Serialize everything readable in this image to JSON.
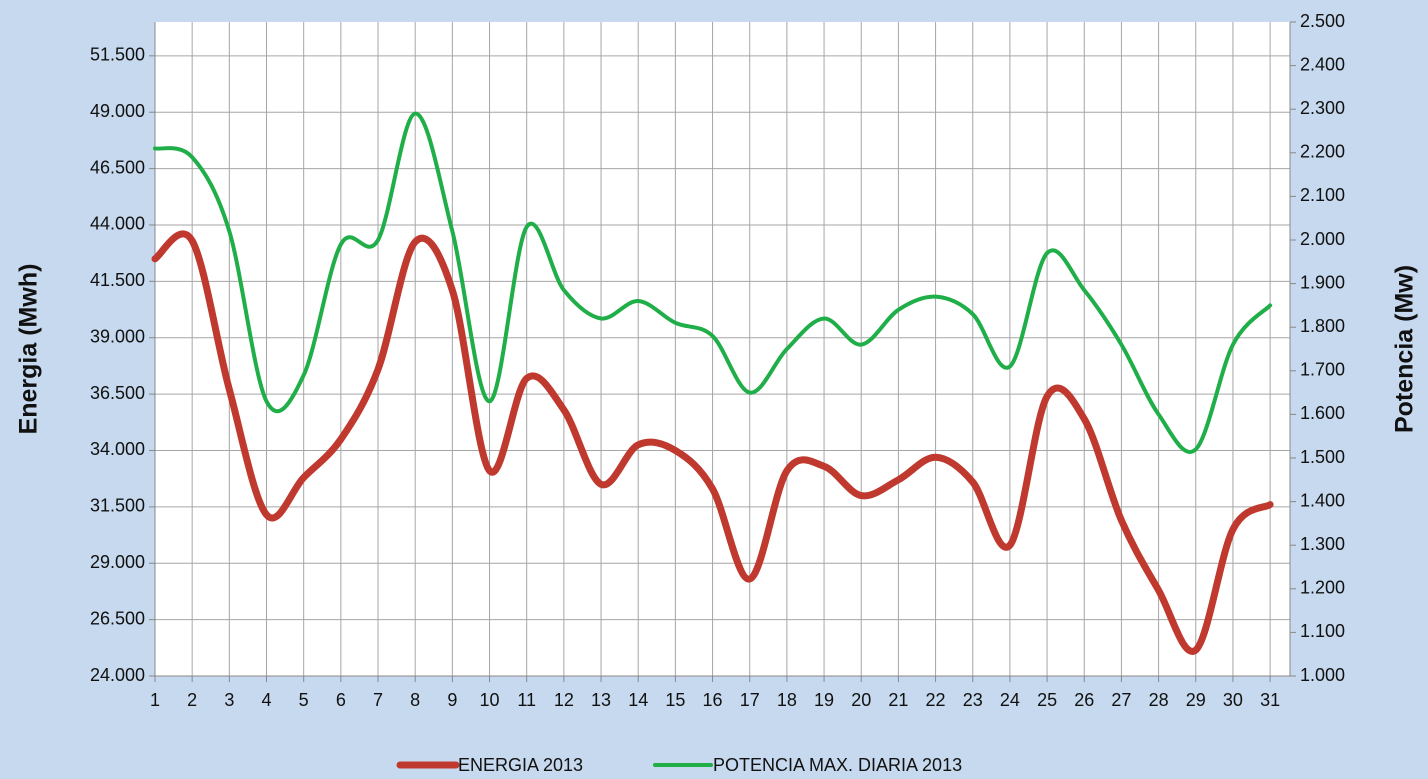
{
  "chart_data": {
    "type": "line",
    "y_label": "Energia (Mwh)",
    "y2_label": "Potencia (Mw)",
    "categories": [
      "1",
      "2",
      "3",
      "4",
      "5",
      "6",
      "7",
      "8",
      "9",
      "10",
      "11",
      "12",
      "13",
      "14",
      "15",
      "16",
      "17",
      "18",
      "19",
      "20",
      "21",
      "22",
      "23",
      "24",
      "25",
      "26",
      "27",
      "28",
      "29",
      "30",
      "31"
    ],
    "series": [
      {
        "name": "ENERGIA 2013",
        "color": "#c0392f",
        "axis": "y",
        "values": [
          42500,
          43300,
          36700,
          31150,
          32800,
          34500,
          37600,
          43250,
          41100,
          33100,
          37200,
          35800,
          32500,
          34250,
          34000,
          32300,
          28300,
          33100,
          33300,
          32000,
          32700,
          33700,
          32600,
          29800,
          36400,
          35400,
          30900,
          27800,
          25150,
          30500,
          31600
        ]
      },
      {
        "name": "POTENCIA MAX. DIARIA 2013",
        "color": "#1fae48",
        "axis": "y2",
        "values": [
          2210,
          2190,
          2020,
          1630,
          1690,
          1990,
          2000,
          2290,
          2020,
          1630,
          2030,
          1885,
          1820,
          1860,
          1810,
          1780,
          1650,
          1750,
          1820,
          1760,
          1840,
          1870,
          1830,
          1710,
          1970,
          1885,
          1760,
          1600,
          1520,
          1760,
          1850
        ]
      }
    ],
    "ylim": [
      24000,
      53000
    ],
    "yticks": [
      {
        "value": 24000,
        "label": "24.000"
      },
      {
        "value": 26500,
        "label": "26.500"
      },
      {
        "value": 29000,
        "label": "29.000"
      },
      {
        "value": 31500,
        "label": "31.500"
      },
      {
        "value": 34000,
        "label": "34.000"
      },
      {
        "value": 36500,
        "label": "36.500"
      },
      {
        "value": 39000,
        "label": "39.000"
      },
      {
        "value": 41500,
        "label": "41.500"
      },
      {
        "value": 44000,
        "label": "44.000"
      },
      {
        "value": 46500,
        "label": "46.500"
      },
      {
        "value": 49000,
        "label": "49.000"
      },
      {
        "value": 51500,
        "label": "51.500"
      }
    ],
    "y2lim": [
      1000,
      2500
    ],
    "y2ticks": [
      {
        "value": 1000,
        "label": "1.000"
      },
      {
        "value": 1100,
        "label": "1.100"
      },
      {
        "value": 1200,
        "label": "1.200"
      },
      {
        "value": 1300,
        "label": "1.300"
      },
      {
        "value": 1400,
        "label": "1.400"
      },
      {
        "value": 1500,
        "label": "1.500"
      },
      {
        "value": 1600,
        "label": "1.600"
      },
      {
        "value": 1700,
        "label": "1.700"
      },
      {
        "value": 1800,
        "label": "1.800"
      },
      {
        "value": 1900,
        "label": "1.900"
      },
      {
        "value": 2000,
        "label": "2.000"
      },
      {
        "value": 2100,
        "label": "2.100"
      },
      {
        "value": 2200,
        "label": "2.200"
      },
      {
        "value": 2300,
        "label": "2.300"
      },
      {
        "value": 2400,
        "label": "2.400"
      },
      {
        "value": 2500,
        "label": "2.500"
      }
    ],
    "grid": true,
    "legend": "bottom"
  }
}
